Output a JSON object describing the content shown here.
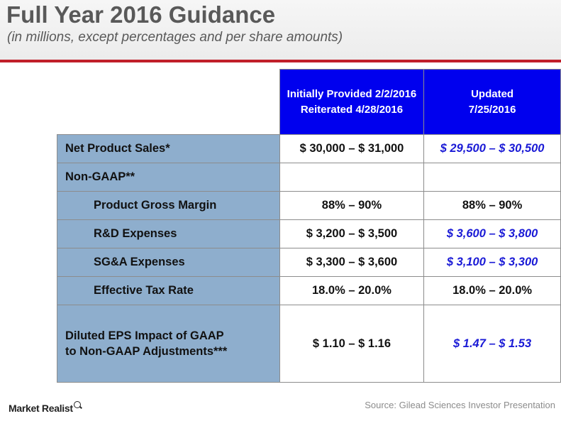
{
  "header": {
    "title": "Full Year 2016 Guidance",
    "subtitle": "(in millions, except percentages and per share amounts)",
    "rule_color": "#c01f2a"
  },
  "table": {
    "columns": {
      "initial": {
        "line1": "Initially Provided 2/2/2016",
        "line2": "Reiterated 4/28/2016"
      },
      "updated": {
        "line1": "Updated",
        "line2": "7/25/2016"
      }
    },
    "rows": [
      {
        "label": "Net Product Sales*",
        "initial": "$ 30,000 – $ 31,000",
        "updated": "$ 29,500 – $ 30,500"
      },
      {
        "label": "Non-GAAP**",
        "initial": "",
        "updated": ""
      },
      {
        "label": "Product Gross Margin",
        "initial": "88% – 90%",
        "updated": "88% – 90%"
      },
      {
        "label": "R&D Expenses",
        "initial": "$ 3,200 – $ 3,500",
        "updated": "$ 3,600 – $ 3,800"
      },
      {
        "label": "SG&A Expenses",
        "initial": "$ 3,300 – $ 3,600",
        "updated": "$ 3,100 – $ 3,300"
      },
      {
        "label": "Effective Tax Rate",
        "initial": "18.0% – 20.0%",
        "updated": "18.0% – 20.0%"
      },
      {
        "label_line1": "Diluted EPS Impact of GAAP",
        "label_line2": "to Non-GAAP Adjustments***",
        "initial": "$ 1.10 – $ 1.16",
        "updated": "$ 1.47 – $ 1.53"
      }
    ],
    "colors": {
      "header_fill": "#0000ee",
      "label_fill": "#8eaecd",
      "changed_value": "#1a1ad6"
    }
  },
  "footer": {
    "logo": "Market Realist",
    "source": "Source: Gilead Sciences Investor Presentation"
  }
}
